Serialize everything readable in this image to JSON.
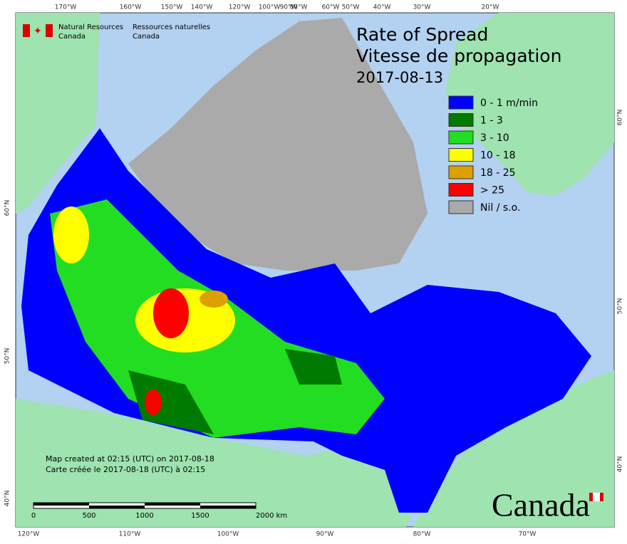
{
  "header": {
    "en_line1": "Natural Resources",
    "en_line2": "Canada",
    "fr_line1": "Ressources naturelles",
    "fr_line2": "Canada"
  },
  "title": {
    "line1": "Rate of Spread",
    "line2": "Vitesse de propagation",
    "date": "2017-08-13"
  },
  "legend": [
    {
      "label": "0 - 1 m/min",
      "color": "#0000ff"
    },
    {
      "label": "1 - 3",
      "color": "#007a00"
    },
    {
      "label": "3 - 10",
      "color": "#22dd22"
    },
    {
      "label": "10 - 18",
      "color": "#ffff00"
    },
    {
      "label": "18 - 25",
      "color": "#dda000"
    },
    {
      "label": "> 25",
      "color": "#ff0000"
    },
    {
      "label": "Nil / s.o.",
      "color": "#aaaaaa"
    }
  ],
  "graticule": {
    "top": [
      "170°W",
      "160°W",
      "150°W",
      "140°W",
      "120°W",
      "100°W",
      "90°W",
      "80°W",
      "60°W",
      "50°W",
      "40°W",
      "30°W",
      "20°W"
    ],
    "bottom": [
      "120°W",
      "110°W",
      "100°W",
      "90°W",
      "80°W",
      "70°W"
    ],
    "left": [
      "60°N",
      "50°N",
      "40°N"
    ],
    "right": [
      "60°N",
      "50°N",
      "40°N"
    ]
  },
  "footer": {
    "created_en": "Map created at 02:15 (UTC) on 2017-08-18",
    "created_fr": "Carte créée le 2017-08-18 (UTC) à 02:15"
  },
  "scale_bar": [
    "0",
    "500",
    "1000",
    "1500",
    "2000 km"
  ],
  "wordmark": "Canada"
}
